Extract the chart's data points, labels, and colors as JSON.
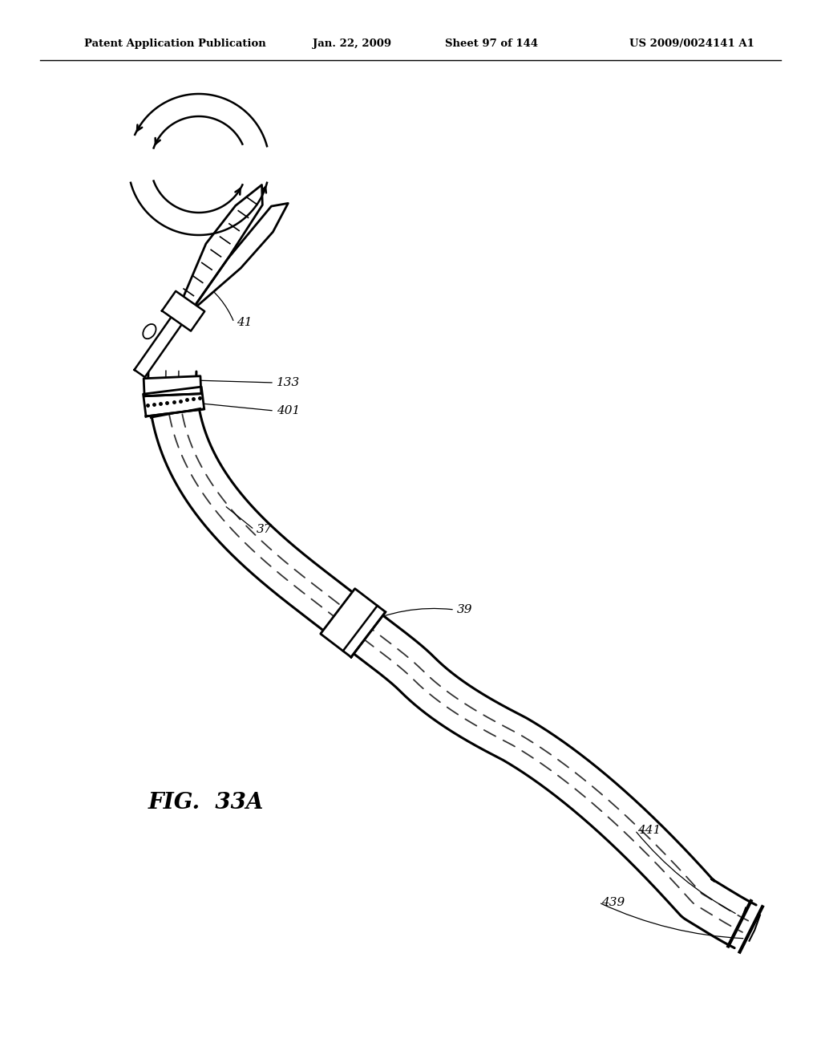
{
  "header_left": "Patent Application Publication",
  "header_mid": "Jan. 22, 2009  Sheet 97 of 144",
  "header_right": "US 2009/0024141 A1",
  "fig_label": "FIG.  33A",
  "bg_color": "#ffffff",
  "line_color": "#000000"
}
